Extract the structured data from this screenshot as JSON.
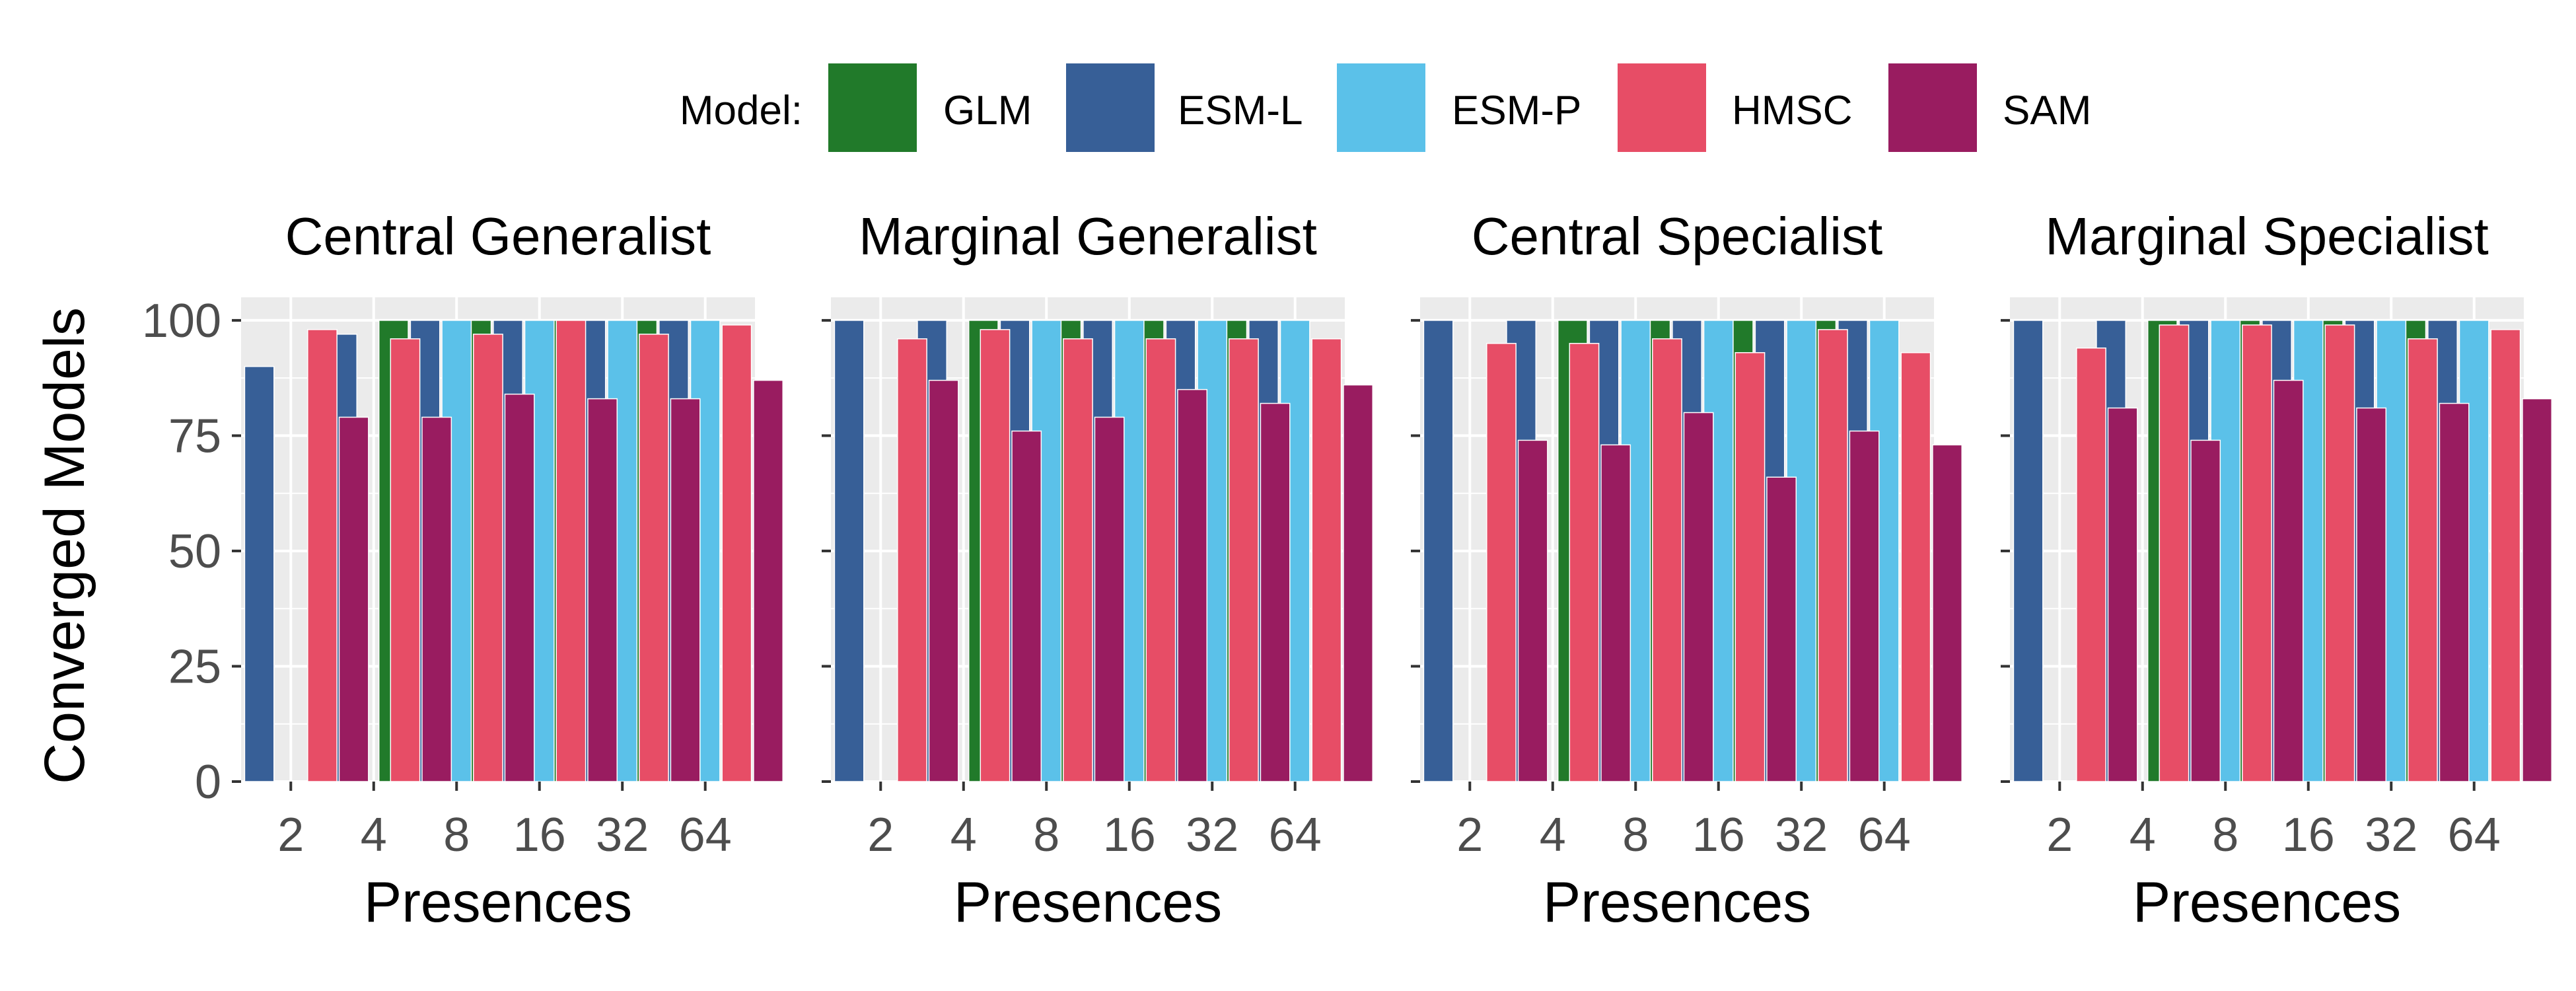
{
  "chart_data": {
    "type": "bar",
    "xlabel": "Presences",
    "ylabel": "Converged Models",
    "ylim": [
      0,
      105
    ],
    "y_ticks": [
      0,
      25,
      50,
      75,
      100
    ],
    "categories": [
      "2",
      "4",
      "8",
      "16",
      "32",
      "64"
    ],
    "grid": true,
    "legend": {
      "title": "Model:",
      "position": "top",
      "entries": [
        {
          "name": "GLM",
          "color": "#217a2a"
        },
        {
          "name": "ESM-L",
          "color": "#375f97"
        },
        {
          "name": "ESM-P",
          "color": "#5bc1e9"
        },
        {
          "name": "HMSC",
          "color": "#e74d66"
        },
        {
          "name": "SAM",
          "color": "#991c60"
        }
      ]
    },
    "panels": [
      {
        "title": "Central Generalist",
        "series": [
          {
            "name": "GLM",
            "values": [
              0,
              0,
              100,
              100,
              100,
              100
            ]
          },
          {
            "name": "ESM-L",
            "values": [
              90,
              97,
              100,
              100,
              100,
              100
            ]
          },
          {
            "name": "ESM-P",
            "values": [
              0,
              0,
              100,
              100,
              100,
              100
            ]
          },
          {
            "name": "HMSC",
            "values": [
              98,
              96,
              97,
              100,
              97,
              99
            ]
          },
          {
            "name": "SAM",
            "values": [
              79,
              79,
              84,
              83,
              83,
              87
            ]
          }
        ]
      },
      {
        "title": "Marginal Generalist",
        "series": [
          {
            "name": "GLM",
            "values": [
              0,
              0,
              100,
              100,
              100,
              100
            ]
          },
          {
            "name": "ESM-L",
            "values": [
              100,
              100,
              100,
              100,
              100,
              100
            ]
          },
          {
            "name": "ESM-P",
            "values": [
              0,
              0,
              100,
              100,
              100,
              100
            ]
          },
          {
            "name": "HMSC",
            "values": [
              96,
              98,
              96,
              96,
              96,
              96
            ]
          },
          {
            "name": "SAM",
            "values": [
              87,
              76,
              79,
              85,
              82,
              86
            ]
          }
        ]
      },
      {
        "title": "Central Specialist",
        "series": [
          {
            "name": "GLM",
            "values": [
              0,
              0,
              100,
              100,
              100,
              100
            ]
          },
          {
            "name": "ESM-L",
            "values": [
              100,
              100,
              100,
              100,
              100,
              100
            ]
          },
          {
            "name": "ESM-P",
            "values": [
              0,
              0,
              100,
              100,
              100,
              100
            ]
          },
          {
            "name": "HMSC",
            "values": [
              95,
              95,
              96,
              93,
              98,
              93
            ]
          },
          {
            "name": "SAM",
            "values": [
              74,
              73,
              80,
              66,
              76,
              73
            ]
          }
        ]
      },
      {
        "title": "Marginal Specialist",
        "series": [
          {
            "name": "GLM",
            "values": [
              0,
              0,
              100,
              100,
              100,
              100
            ]
          },
          {
            "name": "ESM-L",
            "values": [
              100,
              100,
              100,
              100,
              100,
              100
            ]
          },
          {
            "name": "ESM-P",
            "values": [
              0,
              0,
              100,
              100,
              100,
              100
            ]
          },
          {
            "name": "HMSC",
            "values": [
              94,
              99,
              99,
              99,
              96,
              98
            ]
          },
          {
            "name": "SAM",
            "values": [
              81,
              74,
              87,
              81,
              82,
              83
            ]
          }
        ]
      }
    ]
  }
}
